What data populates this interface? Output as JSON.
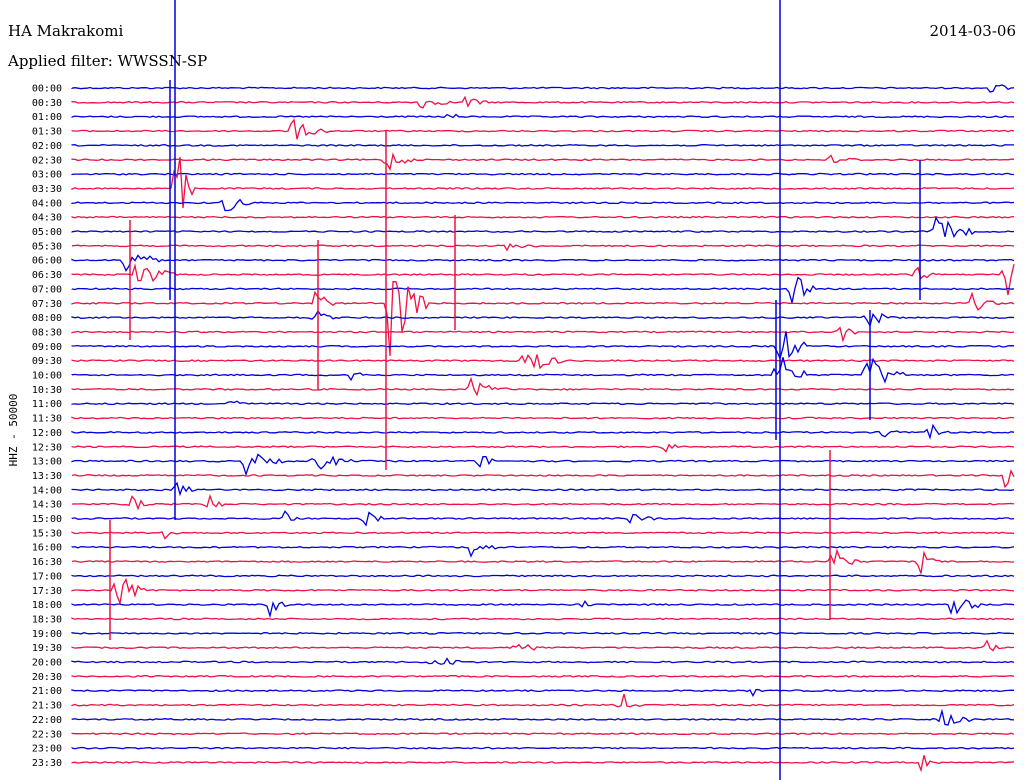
{
  "header": {
    "station": "HA Makrakomi",
    "date": "2014-03-06",
    "filter": "Applied filter: WWSSN-SP"
  },
  "chart_data": {
    "type": "line",
    "title": "HA Makrakomi",
    "subtitle": "Applied filter: WWSSN-SP",
    "ylabel": "HHZ - 50000",
    "rows": [
      "00:00",
      "00:30",
      "01:00",
      "01:30",
      "02:00",
      "02:30",
      "03:00",
      "03:30",
      "04:00",
      "04:30",
      "05:00",
      "05:30",
      "06:00",
      "06:30",
      "07:00",
      "07:30",
      "08:00",
      "08:30",
      "09:00",
      "09:30",
      "10:00",
      "10:30",
      "11:00",
      "11:30",
      "12:00",
      "12:30",
      "13:00",
      "13:30",
      "14:00",
      "14:30",
      "15:00",
      "15:30",
      "16:00",
      "16:30",
      "17:00",
      "17:30",
      "18:00",
      "18:30",
      "19:00",
      "19:30",
      "20:00",
      "20:30",
      "21:00",
      "21:30",
      "22:00",
      "22:30",
      "23:00",
      "23:30"
    ],
    "trace_colors": [
      "#0000dd",
      "#ee1144"
    ],
    "grid": false
  }
}
